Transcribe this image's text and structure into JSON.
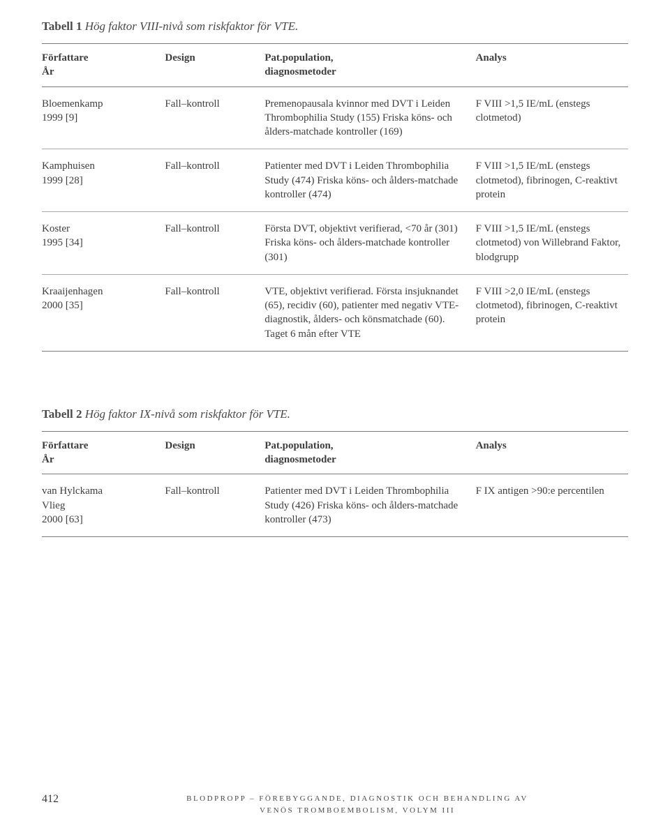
{
  "table1": {
    "title_bold": "Tabell 1",
    "title_ital": "Hög faktor VIII-nivå som riskfaktor för VTE.",
    "headers": {
      "author": "Författare\nÅr",
      "design": "Design",
      "population": "Pat.population,\ndiagnosmetoder",
      "analysis": "Analys"
    },
    "rows": [
      {
        "author": "Bloemenkamp\n1999 [9]",
        "design": "Fall–kontroll",
        "population": "Premenopausala kvinnor med DVT i Leiden Thrombophilia Study (155) Friska köns- och ålders-matchade kontroller (169)",
        "analysis": "F VIII >1,5 IE/mL (enstegs clotmetod)"
      },
      {
        "author": "Kamphuisen\n1999 [28]",
        "design": "Fall–kontroll",
        "population": "Patienter med DVT i Leiden Thrombophilia Study (474) Friska köns- och ålders-matchade kontroller (474)",
        "analysis": "F VIII >1,5 IE/mL (enstegs clotmetod), fibrinogen, C-reaktivt protein"
      },
      {
        "author": "Koster\n1995 [34]",
        "design": "Fall–kontroll",
        "population": "Första DVT, objektivt verifierad, <70 år (301) Friska köns- och ålders-matchade kontroller (301)",
        "analysis": "F VIII >1,5 IE/mL (enstegs clotmetod) von Willebrand Faktor, blodgrupp"
      },
      {
        "author": "Kraaijenhagen\n2000 [35]",
        "design": "Fall–kontroll",
        "population": "VTE, objektivt verifierad. Första insjuknandet (65), recidiv (60), patienter med negativ VTE-diagnostik, ålders- och könsmatchade (60). Taget 6 mån efter VTE",
        "analysis": "F VIII >2,0 IE/mL (enstegs clotmetod), fibrinogen, C-reaktivt protein"
      }
    ]
  },
  "table2": {
    "title_bold": "Tabell 2",
    "title_ital": "Hög faktor IX-nivå som riskfaktor för VTE.",
    "headers": {
      "author": "Författare\nÅr",
      "design": "Design",
      "population": "Pat.population,\ndiagnosmetoder",
      "analysis": "Analys"
    },
    "rows": [
      {
        "author": "van Hylckama\nVlieg\n2000 [63]",
        "design": "Fall–kontroll",
        "population": "Patienter med DVT i Leiden Thrombophilia Study (426) Friska köns- och ålders-matchade kontroller (473)",
        "analysis": "F IX antigen >90:e percentilen"
      }
    ]
  },
  "footer": {
    "page": "412",
    "line1": "BLODPROPP – FÖREBYGGANDE, DIAGNOSTIK OCH BEHANDLING AV",
    "line2": "VENÖS TROMBOEMBOLISM, VOLYM III"
  }
}
